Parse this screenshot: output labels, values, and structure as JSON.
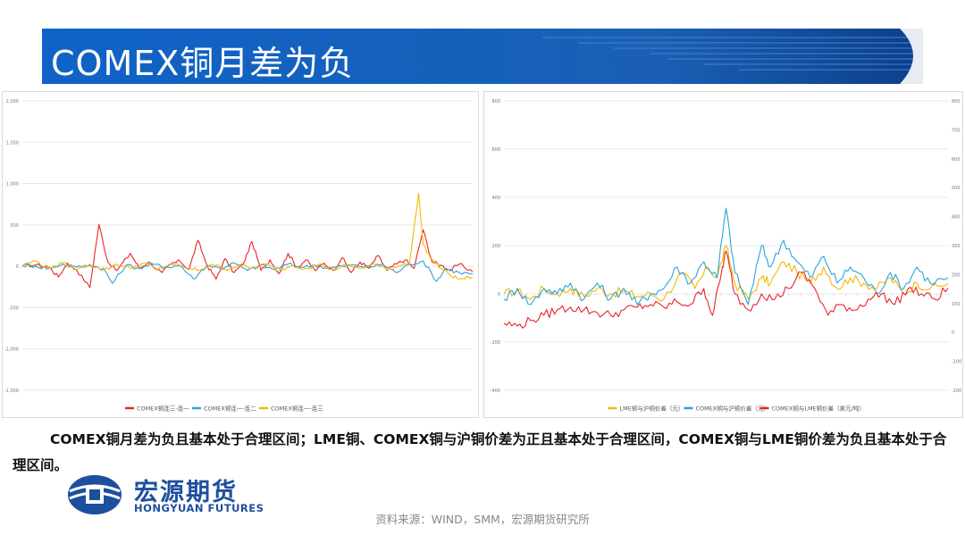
{
  "slide": {
    "title": "COMEX铜月差为负",
    "summary": "COMEX铜月差为负且基本处于合理区间；LME铜、COMEX铜与沪铜价差为正且基本处于合理区间，COMEX铜与LME铜价差为负且基本处于合理区间。",
    "source": "资料来源：WIND，SMM，宏源期货研究所",
    "logo_cn": "宏源期货",
    "logo_en": "HONGYUAN FUTURES"
  },
  "colors": {
    "banner": "#1a5fb4",
    "banner_dark": "#0d3f8a",
    "red": "#e8242a",
    "blue": "#2aa4dc",
    "gold": "#f5b800",
    "logo": "#1d4f9e"
  },
  "chart_data": [
    {
      "type": "line",
      "y_ticks": [
        "2,000",
        "1,500",
        "1,000",
        "500",
        "0",
        "-500",
        "-1,000",
        "-1,500"
      ],
      "ylim": [
        -1500,
        2000
      ],
      "series": [
        {
          "name": "COMEX铜连三-连一",
          "color": "#e8242a",
          "points": [
            [
              0,
              0.02
            ],
            [
              0.03,
              0.06
            ],
            [
              0.06,
              -0.05
            ],
            [
              0.08,
              -0.5
            ],
            [
              0.1,
              0.15
            ],
            [
              0.12,
              -0.15
            ],
            [
              0.15,
              -1.0
            ],
            [
              0.17,
              1.95
            ],
            [
              0.19,
              0.2
            ],
            [
              0.21,
              -0.2
            ],
            [
              0.24,
              0.6
            ],
            [
              0.26,
              -0.1
            ],
            [
              0.28,
              0.2
            ],
            [
              0.31,
              -0.3
            ],
            [
              0.33,
              0.1
            ],
            [
              0.35,
              0.25
            ],
            [
              0.37,
              -0.15
            ],
            [
              0.39,
              1.2
            ],
            [
              0.41,
              0.05
            ],
            [
              0.43,
              -0.6
            ],
            [
              0.45,
              0.35
            ],
            [
              0.47,
              -0.3
            ],
            [
              0.49,
              0.1
            ],
            [
              0.51,
              1.15
            ],
            [
              0.53,
              -0.2
            ],
            [
              0.55,
              0.3
            ],
            [
              0.57,
              -0.35
            ],
            [
              0.59,
              0.6
            ],
            [
              0.61,
              -0.05
            ],
            [
              0.63,
              0.3
            ],
            [
              0.65,
              -0.2
            ],
            [
              0.67,
              0.15
            ],
            [
              0.69,
              -0.2
            ],
            [
              0.71,
              0.4
            ],
            [
              0.73,
              -0.3
            ],
            [
              0.75,
              0.2
            ],
            [
              0.77,
              -0.1
            ],
            [
              0.79,
              0.5
            ],
            [
              0.81,
              -0.2
            ],
            [
              0.83,
              0.1
            ],
            [
              0.85,
              0.3
            ],
            [
              0.87,
              -0.1
            ],
            [
              0.89,
              1.7
            ],
            [
              0.91,
              0.2
            ],
            [
              0.93,
              0.05
            ],
            [
              0.95,
              -0.2
            ],
            [
              0.97,
              0.1
            ],
            [
              1.0,
              -0.25
            ]
          ]
        },
        {
          "name": "COMEX铜连一-连二",
          "color": "#2aa4dc",
          "points": [
            [
              0,
              0.05
            ],
            [
              0.03,
              0.0
            ],
            [
              0.06,
              -0.1
            ],
            [
              0.09,
              0.1
            ],
            [
              0.12,
              -0.05
            ],
            [
              0.15,
              0.05
            ],
            [
              0.18,
              -0.1
            ],
            [
              0.2,
              -0.8
            ],
            [
              0.23,
              0.05
            ],
            [
              0.26,
              -0.1
            ],
            [
              0.29,
              0.1
            ],
            [
              0.32,
              -0.05
            ],
            [
              0.35,
              0.05
            ],
            [
              0.38,
              -0.6
            ],
            [
              0.41,
              0.05
            ],
            [
              0.44,
              -0.1
            ],
            [
              0.47,
              0.15
            ],
            [
              0.5,
              -0.2
            ],
            [
              0.53,
              0.05
            ],
            [
              0.56,
              -0.15
            ],
            [
              0.59,
              0.1
            ],
            [
              0.62,
              -0.05
            ],
            [
              0.65,
              0.05
            ],
            [
              0.68,
              -0.1
            ],
            [
              0.71,
              0.0
            ],
            [
              0.74,
              0.05
            ],
            [
              0.77,
              -0.05
            ],
            [
              0.8,
              0.1
            ],
            [
              0.83,
              -0.3
            ],
            [
              0.86,
              0.1
            ],
            [
              0.89,
              0.25
            ],
            [
              0.92,
              -0.7
            ],
            [
              0.94,
              -0.1
            ],
            [
              0.97,
              -0.3
            ],
            [
              1.0,
              -0.35
            ]
          ]
        },
        {
          "name": "COMEX铜连一-连三",
          "color": "#f5b800",
          "points": [
            [
              0,
              0.05
            ],
            [
              0.03,
              0.25
            ],
            [
              0.06,
              -0.1
            ],
            [
              0.09,
              0.15
            ],
            [
              0.12,
              -0.15
            ],
            [
              0.15,
              0.1
            ],
            [
              0.18,
              -0.2
            ],
            [
              0.21,
              0.1
            ],
            [
              0.24,
              -0.1
            ],
            [
              0.27,
              0.15
            ],
            [
              0.3,
              -0.15
            ],
            [
              0.33,
              0.1
            ],
            [
              0.36,
              -0.05
            ],
            [
              0.39,
              -0.2
            ],
            [
              0.42,
              0.1
            ],
            [
              0.45,
              -0.15
            ],
            [
              0.48,
              0.05
            ],
            [
              0.51,
              -0.1
            ],
            [
              0.54,
              0.1
            ],
            [
              0.57,
              -0.2
            ],
            [
              0.6,
              0.05
            ],
            [
              0.63,
              -0.1
            ],
            [
              0.66,
              0.1
            ],
            [
              0.69,
              -0.15
            ],
            [
              0.72,
              0.05
            ],
            [
              0.75,
              -0.1
            ],
            [
              0.78,
              0.1
            ],
            [
              0.81,
              -0.15
            ],
            [
              0.84,
              0.05
            ],
            [
              0.86,
              0.2
            ],
            [
              0.88,
              3.4
            ],
            [
              0.89,
              1.0
            ],
            [
              0.91,
              0.3
            ],
            [
              0.93,
              -0.1
            ],
            [
              0.95,
              -0.4
            ],
            [
              0.97,
              -0.6
            ],
            [
              1.0,
              -0.5
            ]
          ]
        }
      ]
    },
    {
      "type": "line",
      "y_ticks_left": [
        "800",
        "600",
        "400",
        "200",
        "0",
        "-200",
        "-400"
      ],
      "y_ticks_right": [
        "800",
        "700",
        "600",
        "500",
        "400",
        "300",
        "200",
        "100",
        "0",
        "-100",
        "-200"
      ],
      "ylim_left": [
        -400,
        800
      ],
      "ylim_right": [
        -200,
        800
      ],
      "series": [
        {
          "name": "LME铜与沪铜价差（元）",
          "color": "#f5b800",
          "points": [
            [
              0,
              0.0
            ],
            [
              0.03,
              0.05
            ],
            [
              0.06,
              -0.1
            ],
            [
              0.09,
              0.1
            ],
            [
              0.12,
              0.0
            ],
            [
              0.15,
              0.1
            ],
            [
              0.18,
              -0.05
            ],
            [
              0.21,
              0.1
            ],
            [
              0.24,
              0.0
            ],
            [
              0.27,
              0.05
            ],
            [
              0.3,
              -0.05
            ],
            [
              0.33,
              0.0
            ],
            [
              0.36,
              -0.1
            ],
            [
              0.4,
              0.4
            ],
            [
              0.43,
              0.1
            ],
            [
              0.46,
              0.5
            ],
            [
              0.48,
              0.3
            ],
            [
              0.5,
              0.9
            ],
            [
              0.52,
              0.2
            ],
            [
              0.55,
              -0.1
            ],
            [
              0.58,
              0.3
            ],
            [
              0.6,
              0.2
            ],
            [
              0.63,
              0.6
            ],
            [
              0.66,
              0.4
            ],
            [
              0.69,
              0.2
            ],
            [
              0.72,
              0.5
            ],
            [
              0.75,
              0.1
            ],
            [
              0.78,
              0.3
            ],
            [
              0.81,
              0.2
            ],
            [
              0.84,
              0.1
            ],
            [
              0.87,
              0.3
            ],
            [
              0.9,
              0.0
            ],
            [
              0.93,
              0.2
            ],
            [
              0.96,
              0.1
            ],
            [
              1.0,
              0.2
            ]
          ]
        },
        {
          "name": "COMEX铜与沪铜价差（元）",
          "color": "#2aa4dc",
          "points": [
            [
              0,
              -0.1
            ],
            [
              0.03,
              0.1
            ],
            [
              0.06,
              -0.2
            ],
            [
              0.09,
              0.1
            ],
            [
              0.12,
              0.0
            ],
            [
              0.15,
              0.2
            ],
            [
              0.18,
              -0.1
            ],
            [
              0.21,
              0.2
            ],
            [
              0.24,
              -0.1
            ],
            [
              0.27,
              0.1
            ],
            [
              0.3,
              -0.2
            ],
            [
              0.33,
              0.0
            ],
            [
              0.36,
              0.1
            ],
            [
              0.39,
              0.5
            ],
            [
              0.42,
              0.2
            ],
            [
              0.45,
              0.6
            ],
            [
              0.48,
              0.3
            ],
            [
              0.5,
              1.6
            ],
            [
              0.52,
              0.4
            ],
            [
              0.55,
              -0.2
            ],
            [
              0.58,
              0.9
            ],
            [
              0.6,
              0.5
            ],
            [
              0.63,
              1.0
            ],
            [
              0.66,
              0.6
            ],
            [
              0.69,
              0.3
            ],
            [
              0.72,
              0.7
            ],
            [
              0.75,
              0.2
            ],
            [
              0.78,
              0.5
            ],
            [
              0.81,
              0.3
            ],
            [
              0.84,
              0.0
            ],
            [
              0.87,
              0.4
            ],
            [
              0.9,
              0.1
            ],
            [
              0.93,
              0.5
            ],
            [
              0.96,
              0.2
            ],
            [
              1.0,
              0.3
            ]
          ]
        },
        {
          "name": "COMEX铜与LME铜价差（美元/吨）",
          "color": "#e8242a",
          "points": [
            [
              0,
              -0.55
            ],
            [
              0.03,
              -0.6
            ],
            [
              0.06,
              -0.5
            ],
            [
              0.09,
              -0.4
            ],
            [
              0.12,
              -0.3
            ],
            [
              0.15,
              -0.25
            ],
            [
              0.18,
              -0.3
            ],
            [
              0.21,
              -0.35
            ],
            [
              0.24,
              -0.4
            ],
            [
              0.27,
              -0.3
            ],
            [
              0.3,
              -0.25
            ],
            [
              0.33,
              -0.2
            ],
            [
              0.36,
              -0.25
            ],
            [
              0.39,
              -0.15
            ],
            [
              0.42,
              -0.2
            ],
            [
              0.45,
              0.1
            ],
            [
              0.47,
              -0.4
            ],
            [
              0.49,
              0.4
            ],
            [
              0.5,
              0.8
            ],
            [
              0.52,
              0.0
            ],
            [
              0.55,
              -0.3
            ],
            [
              0.58,
              0.0
            ],
            [
              0.61,
              -0.1
            ],
            [
              0.64,
              0.1
            ],
            [
              0.67,
              0.4
            ],
            [
              0.7,
              0.1
            ],
            [
              0.73,
              -0.4
            ],
            [
              0.76,
              -0.2
            ],
            [
              0.79,
              -0.3
            ],
            [
              0.82,
              -0.1
            ],
            [
              0.85,
              0.0
            ],
            [
              0.88,
              -0.2
            ],
            [
              0.91,
              0.1
            ],
            [
              0.94,
              0.0
            ],
            [
              0.97,
              -0.1
            ],
            [
              1.0,
              0.1
            ]
          ]
        }
      ]
    }
  ]
}
